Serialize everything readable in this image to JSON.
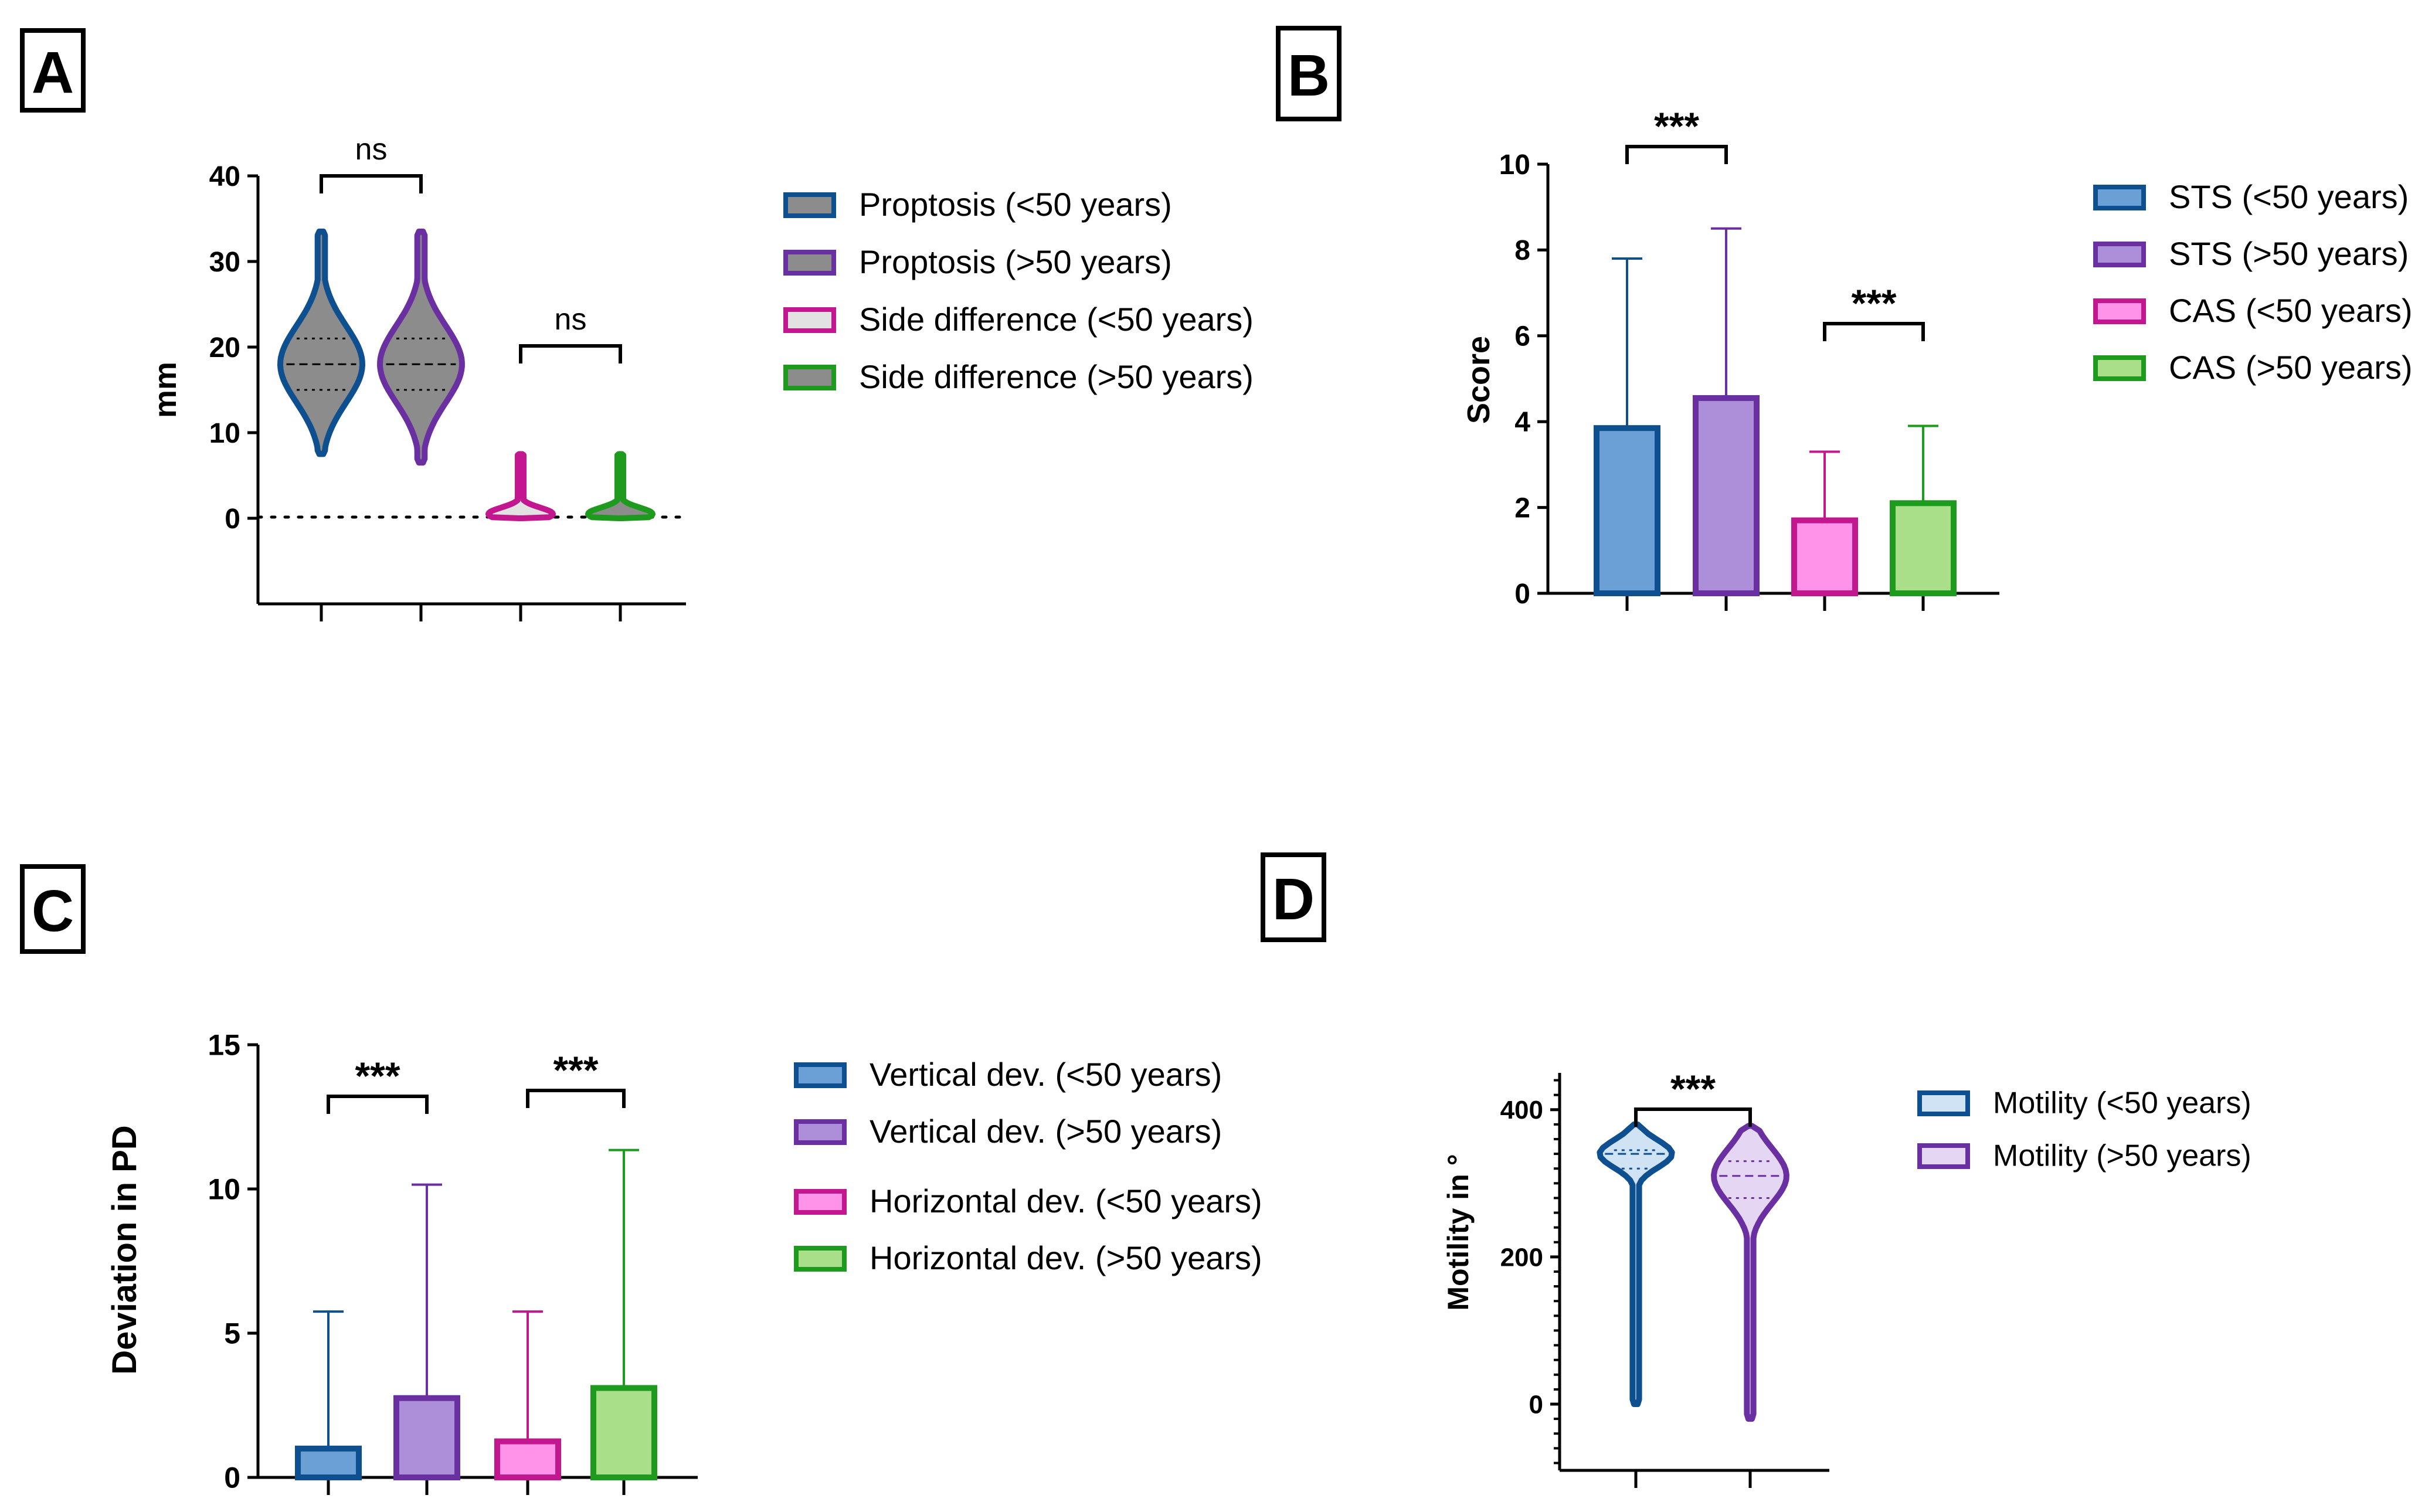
{
  "colors": {
    "blue_edge": "#0e4f8f",
    "blue_fill": "#6aa0d6",
    "purple_edge": "#6a2fa0",
    "purple_fill": "#ad8ed8",
    "magenta_edge": "#c2178f",
    "magenta_fill": "#ff93ea",
    "green_edge": "#1e9a1e",
    "green_fill": "#a9df88",
    "gray_fill": "#8c8c8c",
    "light_gray_fill": "#e2e2e2"
  },
  "chart_data": [
    {
      "panel": "A",
      "type": "violin",
      "ylabel": "mm",
      "ylim": [
        -10,
        40
      ],
      "yticks": [
        0,
        10,
        20,
        30,
        40
      ],
      "reference_line": 0,
      "groups": [
        {
          "name": "Proptosis (<50 years)",
          "min": 7.5,
          "q1": 15,
          "median": 18,
          "q3": 21,
          "max": 33.5,
          "edge": "#0e4f8f",
          "fill": "#8c8c8c"
        },
        {
          "name": "Proptosis (>50 years)",
          "min": 6.5,
          "q1": 15,
          "median": 18,
          "q3": 21,
          "max": 33.5,
          "edge": "#6a2fa0",
          "fill": "#8c8c8c"
        },
        {
          "name": "Side difference (<50 years)",
          "min": 0,
          "q1": 0,
          "median": 0.5,
          "q3": 1,
          "max": 7.5,
          "edge": "#c2178f",
          "fill": "#e2e2e2"
        },
        {
          "name": "Side difference (>50 years)",
          "min": 0,
          "q1": 0,
          "median": 0.5,
          "q3": 1,
          "max": 7.5,
          "edge": "#1e9a1e",
          "fill": "#8c8c8c"
        }
      ],
      "significance": [
        {
          "from": 0,
          "to": 1,
          "label": "ns"
        },
        {
          "from": 2,
          "to": 3,
          "label": "ns"
        }
      ]
    },
    {
      "panel": "B",
      "type": "bar",
      "ylabel": "Score",
      "ylim": [
        0,
        10
      ],
      "yticks": [
        0,
        2,
        4,
        6,
        8,
        10
      ],
      "series": [
        {
          "name": "STS (<50 years)",
          "value": 3.85,
          "error": 3.95,
          "edge": "#0e4f8f",
          "fill": "#6aa0d6"
        },
        {
          "name": "STS (>50 years)",
          "value": 4.55,
          "error": 3.95,
          "edge": "#6a2fa0",
          "fill": "#ad8ed8"
        },
        {
          "name": "CAS (<50 years)",
          "value": 1.7,
          "error": 1.6,
          "edge": "#c2178f",
          "fill": "#ff93ea"
        },
        {
          "name": "CAS (>50 years)",
          "value": 2.1,
          "error": 1.8,
          "edge": "#1e9a1e",
          "fill": "#a9df88"
        }
      ],
      "significance": [
        {
          "from": 0,
          "to": 1,
          "label": "***"
        },
        {
          "from": 2,
          "to": 3,
          "label": "***"
        }
      ]
    },
    {
      "panel": "C",
      "type": "bar",
      "ylabel": "Deviation in PD",
      "ylim": [
        0,
        15
      ],
      "yticks": [
        0,
        5,
        10,
        15
      ],
      "series": [
        {
          "name": "Vertical dev. (<50 years)",
          "value": 1.0,
          "error": 4.75,
          "edge": "#0e4f8f",
          "fill": "#6aa0d6"
        },
        {
          "name": "Vertical dev. (>50 years)",
          "value": 2.75,
          "error": 7.4,
          "edge": "#6a2fa0",
          "fill": "#ad8ed8"
        },
        {
          "name": "Horizontal dev. (<50 years)",
          "value": 1.25,
          "error": 4.5,
          "edge": "#c2178f",
          "fill": "#ff93ea"
        },
        {
          "name": "Horizontal dev. (>50 years)",
          "value": 3.1,
          "error": 8.25,
          "edge": "#1e9a1e",
          "fill": "#a9df88"
        }
      ],
      "significance": [
        {
          "from": 0,
          "to": 1,
          "label": "***"
        },
        {
          "from": 2,
          "to": 3,
          "label": "***"
        }
      ]
    },
    {
      "panel": "D",
      "type": "violin",
      "ylabel": "Motility in °",
      "ylim": [
        -90,
        450
      ],
      "yticks": [
        0,
        200,
        400
      ],
      "groups": [
        {
          "name": "Motility (<50 years)",
          "min": 0,
          "q1": 320,
          "median": 340,
          "q3": 345,
          "max": 380,
          "edge": "#0e4f8f",
          "fill": "#cfe3f5"
        },
        {
          "name": "Motility (>50 years)",
          "min": -20,
          "q1": 280,
          "median": 310,
          "q3": 330,
          "max": 378,
          "edge": "#6a2fa0",
          "fill": "#e5d7f3"
        }
      ],
      "significance": [
        {
          "from": 0,
          "to": 1,
          "label": "***"
        }
      ]
    }
  ],
  "panel_letters": [
    "A",
    "B",
    "C",
    "D"
  ]
}
